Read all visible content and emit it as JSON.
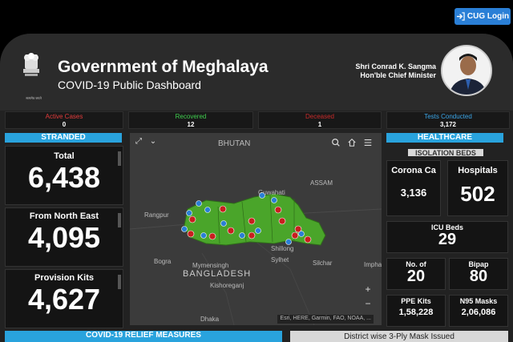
{
  "top": {
    "cug_label": "CUG Login"
  },
  "header": {
    "title": "Government of Meghalaya",
    "subtitle": "COVID-19 Public Dashboard",
    "cm_name": "Shri Conrad K. Sangma",
    "cm_role": "Hon'ble Chief Minister",
    "emblem_motto": "सत्यमेव जयते"
  },
  "stats": [
    {
      "label": "Active Cases",
      "value": "0",
      "color": "#e23b3b"
    },
    {
      "label": "Recovered",
      "value": "12",
      "color": "#3fce4e"
    },
    {
      "label": "Deceased",
      "value": "1",
      "color": "#c82a2a"
    },
    {
      "label": "Tests Conducted",
      "value": "3,172",
      "color": "#3ba6e8"
    }
  ],
  "stranded": {
    "title": "STRANDED",
    "cards": [
      {
        "label": "Total",
        "value": "6,438"
      },
      {
        "label": "From North East",
        "value": "4,095"
      },
      {
        "label": "Provision Kits",
        "value": "4,627"
      }
    ]
  },
  "map": {
    "places": [
      "BHUTAN",
      "Guwahati",
      "ASSAM",
      "Rangpur",
      "Shillong",
      "Bogra",
      "Mymensingh",
      "Sylhet",
      "Silchar",
      "BANGLADESH",
      "Kishoreganj",
      "Imphal",
      "Dhaka"
    ],
    "attribution": "Esri, HERE, Garmin, FAO, NOAA, ...",
    "zoom_in": "+",
    "zoom_out": "−"
  },
  "healthcare": {
    "title": "HEALTHCARE",
    "isolation_title": "ISOLATION BEDS",
    "corona_care_label": "Corona Ca",
    "corona_care_value": "3,136",
    "hospitals_label": "Hospitals",
    "hospitals_value": "502",
    "icu_label": "ICU Beds",
    "icu_value": "29",
    "no_of_label": "No. of",
    "no_of_value": "20",
    "bipap_label": "Bipap",
    "bipap_value": "80",
    "ppe_label": "PPE Kits",
    "ppe_value": "1,58,228",
    "n95_label": "N95 Masks",
    "n95_value": "2,06,086"
  },
  "bottom": {
    "relief_title": "COVID-19 RELIEF MEASURES",
    "district_title": "District wise 3-Ply Mask Issued"
  },
  "colors": {
    "accent": "#29a3dd",
    "map_region": "#4aa52a",
    "marker": "#c81e1e"
  }
}
